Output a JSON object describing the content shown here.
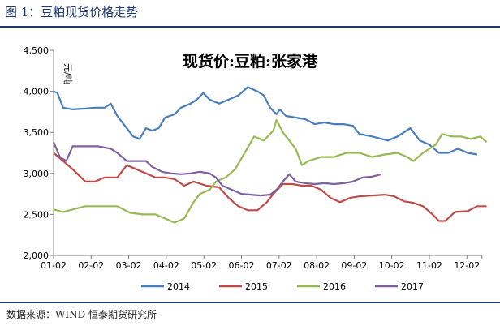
{
  "figure_title": "图 1：豆粕现货价格走势",
  "source_note": "数据来源：WIND 恒泰期货研究所",
  "chart_data": {
    "type": "line",
    "title": "现货价:豆粕:张家港",
    "ylabel": "元/吨",
    "xlabel": "",
    "ylim": [
      2000,
      4500
    ],
    "yticks": [
      "4,500",
      "4,000",
      "3,500",
      "3,000",
      "2,500",
      "2,000"
    ],
    "x_tick_labels": [
      "01-02",
      "02-02",
      "03-02",
      "04-02",
      "05-02",
      "06-02",
      "07-02",
      "08-02",
      "09-02",
      "10-02",
      "11-02",
      "12-02"
    ],
    "legend_position": "bottom",
    "series": [
      {
        "name": "2014",
        "color": "#4a7ebb",
        "points": [
          [
            0,
            4000
          ],
          [
            0.12,
            3980
          ],
          [
            0.3,
            3800
          ],
          [
            0.6,
            3780
          ],
          [
            1.0,
            3790
          ],
          [
            1.3,
            3800
          ],
          [
            1.6,
            3800
          ],
          [
            1.8,
            3850
          ],
          [
            2.0,
            3700
          ],
          [
            2.2,
            3600
          ],
          [
            2.5,
            3450
          ],
          [
            2.7,
            3420
          ],
          [
            2.9,
            3550
          ],
          [
            3.1,
            3520
          ],
          [
            3.3,
            3550
          ],
          [
            3.5,
            3680
          ],
          [
            3.8,
            3720
          ],
          [
            4.0,
            3800
          ],
          [
            4.3,
            3850
          ],
          [
            4.5,
            3900
          ],
          [
            4.7,
            3980
          ],
          [
            4.9,
            3900
          ],
          [
            5.2,
            3850
          ],
          [
            5.5,
            3900
          ],
          [
            5.8,
            3950
          ],
          [
            6.1,
            4050
          ],
          [
            6.4,
            4000
          ],
          [
            6.6,
            3950
          ],
          [
            6.8,
            3800
          ],
          [
            7.0,
            3720
          ],
          [
            7.1,
            3780
          ],
          [
            7.3,
            3700
          ],
          [
            7.6,
            3680
          ],
          [
            7.9,
            3660
          ],
          [
            8.2,
            3600
          ],
          [
            8.5,
            3620
          ],
          [
            8.8,
            3600
          ],
          [
            9.1,
            3600
          ],
          [
            9.4,
            3580
          ],
          [
            9.6,
            3480
          ],
          [
            10.0,
            3450
          ],
          [
            10.5,
            3400
          ],
          [
            10.8,
            3450
          ],
          [
            11.2,
            3550
          ],
          [
            11.5,
            3400
          ],
          [
            11.8,
            3350
          ],
          [
            12.1,
            3250
          ],
          [
            12.4,
            3250
          ],
          [
            12.7,
            3300
          ],
          [
            13.0,
            3250
          ],
          [
            13.3,
            3230
          ]
        ]
      },
      {
        "name": "2015",
        "color": "#be4b48",
        "points": [
          [
            0,
            3250
          ],
          [
            0.3,
            3150
          ],
          [
            0.6,
            3050
          ],
          [
            1.0,
            2900
          ],
          [
            1.3,
            2900
          ],
          [
            1.6,
            2950
          ],
          [
            2.0,
            2950
          ],
          [
            2.3,
            3100
          ],
          [
            2.6,
            3050
          ],
          [
            2.9,
            3000
          ],
          [
            3.2,
            2950
          ],
          [
            3.5,
            2950
          ],
          [
            3.8,
            2930
          ],
          [
            4.1,
            2850
          ],
          [
            4.4,
            2900
          ],
          [
            4.8,
            2850
          ],
          [
            5.2,
            2830
          ],
          [
            5.5,
            2700
          ],
          [
            5.8,
            2600
          ],
          [
            6.1,
            2550
          ],
          [
            6.4,
            2550
          ],
          [
            6.7,
            2650
          ],
          [
            6.9,
            2750
          ],
          [
            7.2,
            2870
          ],
          [
            7.5,
            2870
          ],
          [
            7.8,
            2850
          ],
          [
            8.1,
            2850
          ],
          [
            8.4,
            2800
          ],
          [
            8.7,
            2700
          ],
          [
            9.0,
            2650
          ],
          [
            9.3,
            2700
          ],
          [
            9.6,
            2720
          ],
          [
            10.0,
            2730
          ],
          [
            10.4,
            2740
          ],
          [
            10.7,
            2720
          ],
          [
            11.0,
            2660
          ],
          [
            11.3,
            2640
          ],
          [
            11.6,
            2600
          ],
          [
            11.9,
            2500
          ],
          [
            12.1,
            2420
          ],
          [
            12.3,
            2420
          ],
          [
            12.6,
            2530
          ],
          [
            13.0,
            2540
          ],
          [
            13.3,
            2600
          ],
          [
            13.6,
            2600
          ]
        ]
      },
      {
        "name": "2016",
        "color": "#98b954",
        "points": [
          [
            0,
            2560
          ],
          [
            0.3,
            2530
          ],
          [
            0.6,
            2560
          ],
          [
            1.0,
            2600
          ],
          [
            1.5,
            2600
          ],
          [
            2.0,
            2600
          ],
          [
            2.4,
            2520
          ],
          [
            2.8,
            2500
          ],
          [
            3.2,
            2500
          ],
          [
            3.5,
            2450
          ],
          [
            3.8,
            2400
          ],
          [
            4.1,
            2450
          ],
          [
            4.4,
            2650
          ],
          [
            4.6,
            2750
          ],
          [
            4.9,
            2800
          ],
          [
            5.1,
            2900
          ],
          [
            5.4,
            2950
          ],
          [
            5.7,
            3050
          ],
          [
            6.0,
            3250
          ],
          [
            6.3,
            3450
          ],
          [
            6.6,
            3400
          ],
          [
            6.9,
            3520
          ],
          [
            7.0,
            3650
          ],
          [
            7.2,
            3500
          ],
          [
            7.4,
            3400
          ],
          [
            7.6,
            3300
          ],
          [
            7.8,
            3100
          ],
          [
            8.0,
            3150
          ],
          [
            8.4,
            3200
          ],
          [
            8.8,
            3200
          ],
          [
            9.2,
            3250
          ],
          [
            9.6,
            3250
          ],
          [
            10.0,
            3200
          ],
          [
            10.4,
            3230
          ],
          [
            10.8,
            3250
          ],
          [
            11.1,
            3200
          ],
          [
            11.3,
            3150
          ],
          [
            11.6,
            3250
          ],
          [
            12.0,
            3350
          ],
          [
            12.2,
            3480
          ],
          [
            12.5,
            3450
          ],
          [
            12.8,
            3450
          ],
          [
            13.1,
            3420
          ],
          [
            13.4,
            3450
          ],
          [
            13.6,
            3380
          ]
        ]
      },
      {
        "name": "2017",
        "color": "#7d60a0",
        "points": [
          [
            0,
            3380
          ],
          [
            0.2,
            3200
          ],
          [
            0.4,
            3150
          ],
          [
            0.6,
            3330
          ],
          [
            1.0,
            3330
          ],
          [
            1.4,
            3330
          ],
          [
            1.8,
            3300
          ],
          [
            2.0,
            3250
          ],
          [
            2.3,
            3150
          ],
          [
            2.6,
            3150
          ],
          [
            2.9,
            3150
          ],
          [
            3.1,
            3080
          ],
          [
            3.4,
            3020
          ],
          [
            3.7,
            3000
          ],
          [
            4.0,
            2990
          ],
          [
            4.3,
            3000
          ],
          [
            4.6,
            3020
          ],
          [
            4.9,
            3000
          ],
          [
            5.1,
            2950
          ],
          [
            5.3,
            2850
          ],
          [
            5.6,
            2800
          ],
          [
            5.9,
            2750
          ],
          [
            6.2,
            2740
          ],
          [
            6.5,
            2730
          ],
          [
            6.8,
            2740
          ],
          [
            7.0,
            2800
          ],
          [
            7.2,
            2900
          ],
          [
            7.4,
            2990
          ],
          [
            7.6,
            2900
          ],
          [
            7.9,
            2880
          ],
          [
            8.2,
            2870
          ],
          [
            8.5,
            2880
          ],
          [
            8.8,
            2870
          ],
          [
            9.1,
            2880
          ],
          [
            9.4,
            2900
          ],
          [
            9.7,
            2950
          ],
          [
            10.0,
            2960
          ],
          [
            10.3,
            2990
          ]
        ]
      }
    ]
  }
}
